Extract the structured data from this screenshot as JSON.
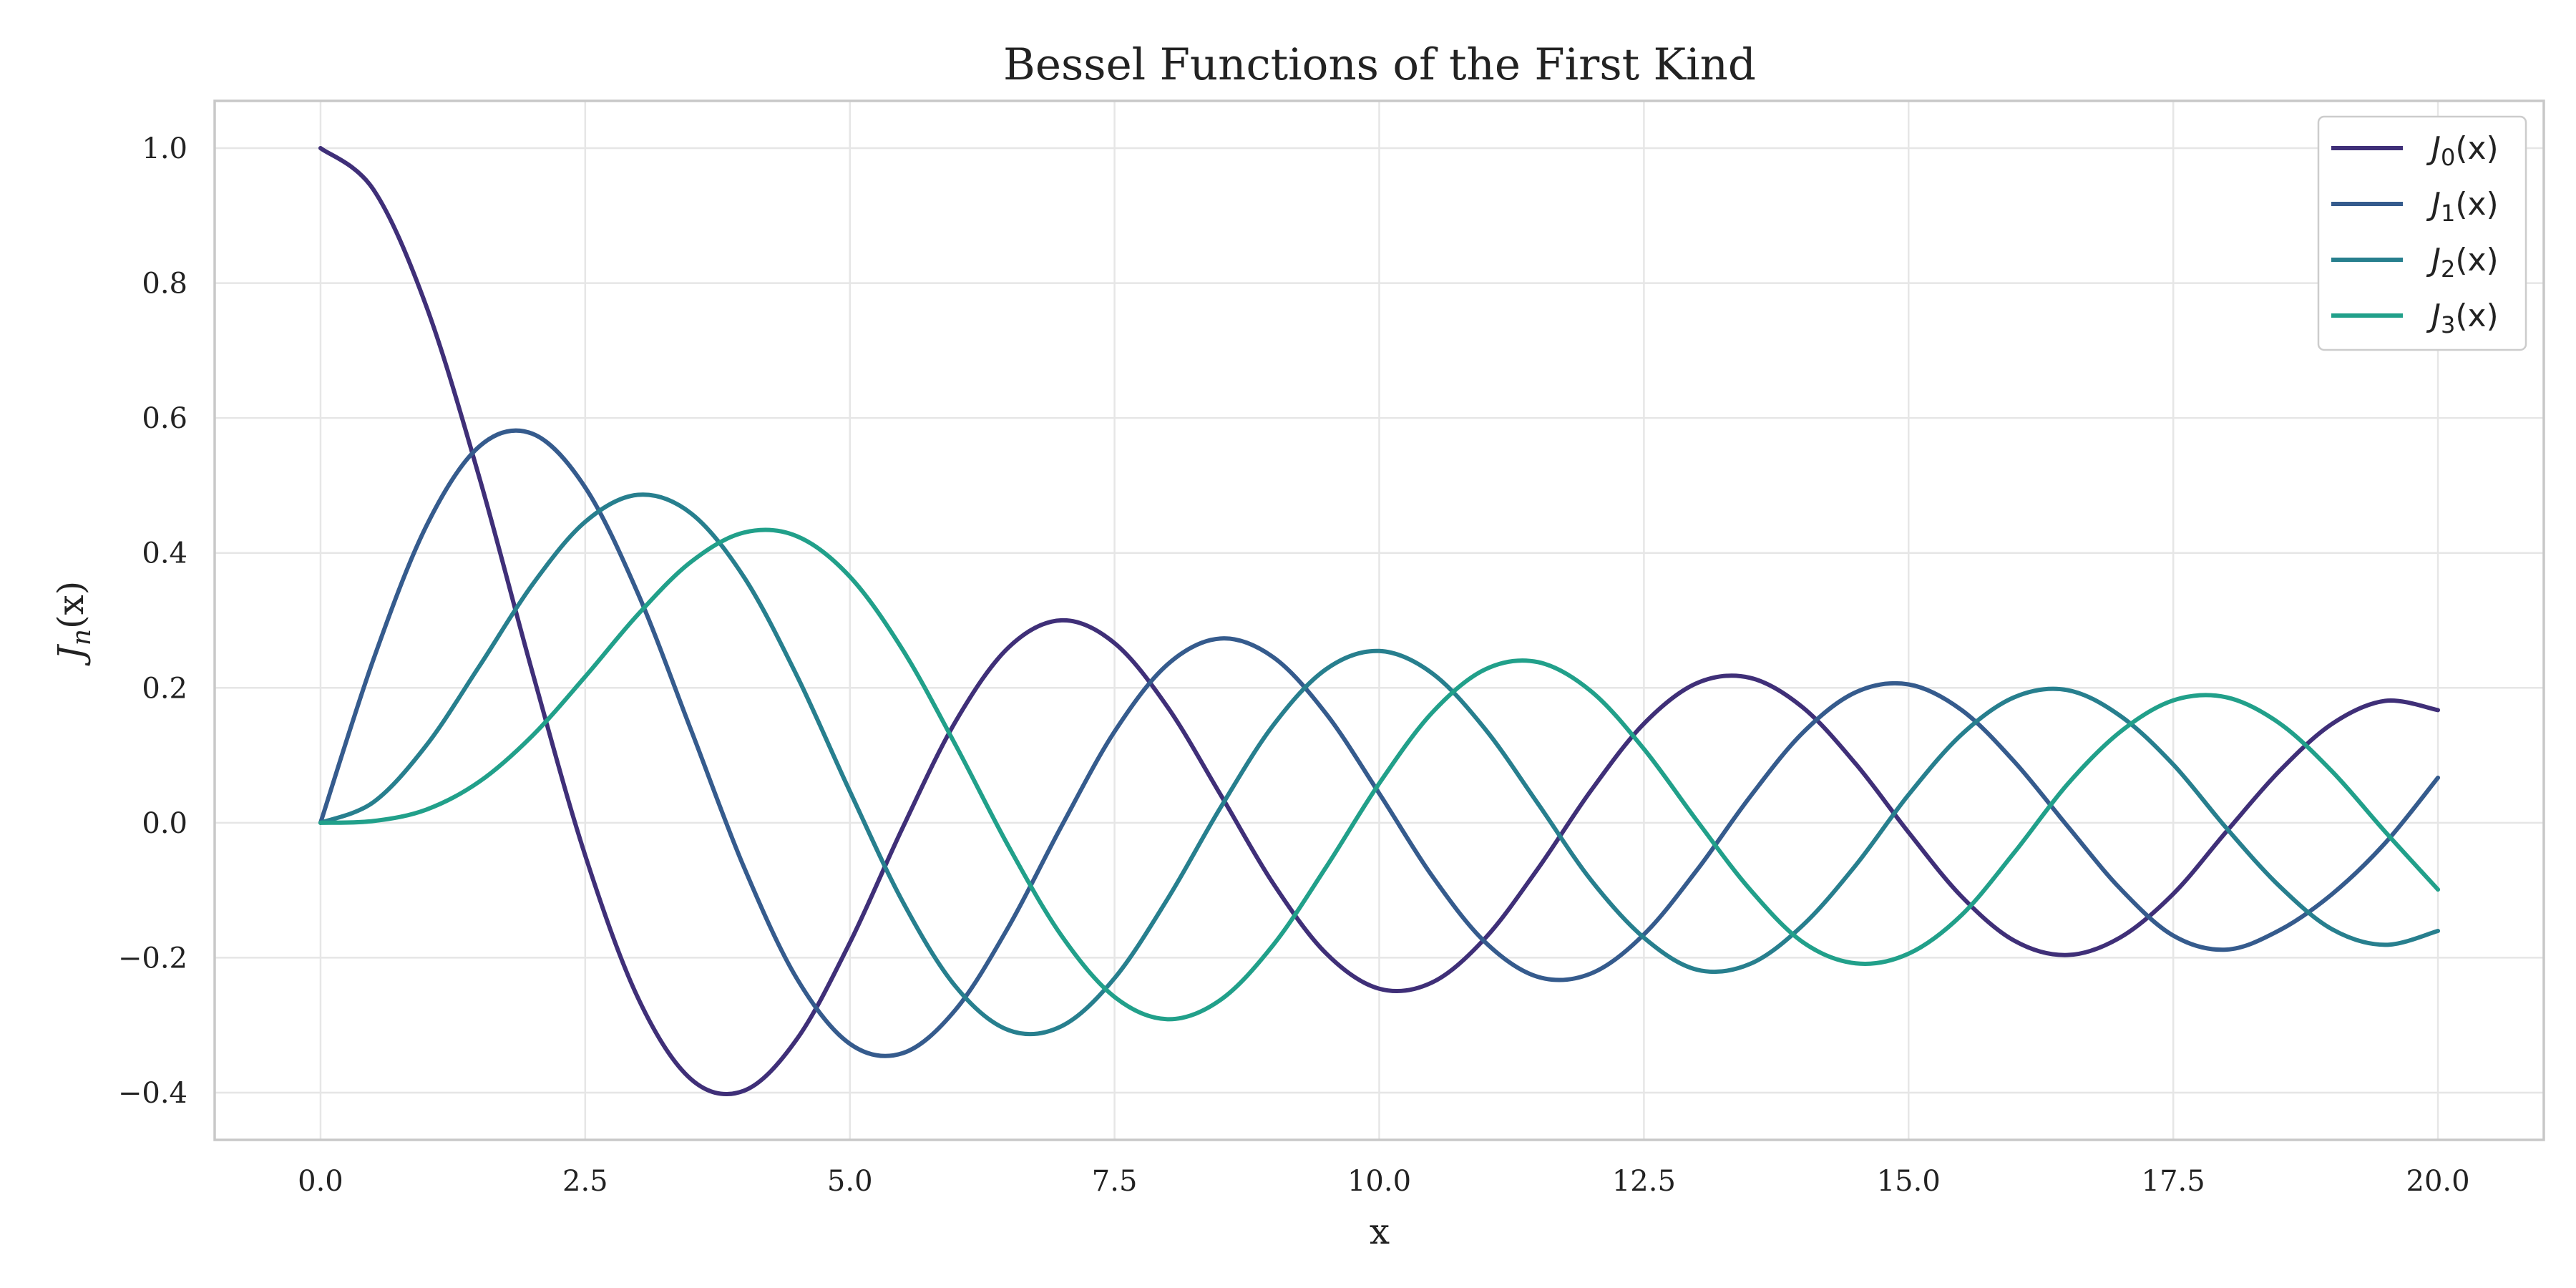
{
  "chart_data": {
    "type": "line",
    "title": "Bessel Functions of the First Kind",
    "xlabel": "x",
    "ylabel": "J_n(x)",
    "ylabel_parts": {
      "base": "J",
      "sub": "n",
      "arg": "(x)"
    },
    "xlim": [
      -1.0,
      21.0
    ],
    "ylim": [
      -0.47,
      1.07
    ],
    "x_ticks": [
      0.0,
      2.5,
      5.0,
      7.5,
      10.0,
      12.5,
      15.0,
      17.5,
      20.0
    ],
    "x_tick_labels": [
      "0.0",
      "2.5",
      "5.0",
      "7.5",
      "10.0",
      "12.5",
      "15.0",
      "17.5",
      "20.0"
    ],
    "y_ticks": [
      -0.4,
      -0.2,
      0.0,
      0.2,
      0.4,
      0.6,
      0.8,
      1.0
    ],
    "y_tick_labels": [
      "−0.4",
      "−0.2",
      "0.0",
      "0.2",
      "0.4",
      "0.6",
      "0.8",
      "1.0"
    ],
    "grid": true,
    "legend_position": "top-right",
    "x": [
      0,
      0.5,
      1,
      1.5,
      2,
      2.5,
      3,
      3.5,
      4,
      4.5,
      5,
      5.5,
      6,
      6.5,
      7,
      7.5,
      8,
      8.5,
      9,
      9.5,
      10,
      10.5,
      11,
      11.5,
      12,
      12.5,
      13,
      13.5,
      14,
      14.5,
      15,
      15.5,
      16,
      16.5,
      17,
      17.5,
      18,
      18.5,
      19,
      19.5,
      20
    ],
    "series": [
      {
        "name": "J_0(x)",
        "label_parts": {
          "base": "J",
          "sub": "0",
          "arg": "(x)"
        },
        "color": "#3f2f78",
        "values": [
          1.0,
          0.9385,
          0.7652,
          0.5118,
          0.2239,
          -0.0484,
          -0.2601,
          -0.3801,
          -0.3971,
          -0.3205,
          -0.1776,
          -0.0068,
          0.1506,
          0.2601,
          0.3001,
          0.2663,
          0.1717,
          0.0419,
          -0.0903,
          -0.1939,
          -0.2459,
          -0.2366,
          -0.1712,
          -0.0677,
          0.0477,
          0.1469,
          0.2069,
          0.215,
          0.1711,
          0.0875,
          -0.0142,
          -0.1092,
          -0.1749,
          -0.196,
          -0.1699,
          -0.1054,
          -0.0134,
          0.0762,
          0.1466,
          0.1807,
          0.167
        ]
      },
      {
        "name": "J_1(x)",
        "label_parts": {
          "base": "J",
          "sub": "1",
          "arg": "(x)"
        },
        "color": "#355b8d",
        "values": [
          0.0,
          0.2423,
          0.4401,
          0.5579,
          0.5767,
          0.4971,
          0.3391,
          0.1374,
          -0.066,
          -0.2311,
          -0.3276,
          -0.3414,
          -0.2767,
          -0.1538,
          -0.0047,
          0.1352,
          0.2346,
          0.2731,
          0.2453,
          0.1613,
          0.0435,
          -0.0789,
          -0.1768,
          -0.2284,
          -0.2234,
          -0.1655,
          -0.0703,
          0.038,
          0.1334,
          0.1934,
          0.2051,
          0.1672,
          0.0904,
          -0.0047,
          -0.0977,
          -0.1672,
          -0.188,
          -0.1596,
          -0.1057,
          -0.0303,
          0.0668
        ]
      },
      {
        "name": "J_2(x)",
        "label_parts": {
          "base": "J",
          "sub": "2",
          "arg": "(x)"
        },
        "color": "#277f8e",
        "values": [
          0.0,
          0.0306,
          0.1149,
          0.2321,
          0.3528,
          0.4461,
          0.4861,
          0.4586,
          0.3641,
          0.2178,
          0.0466,
          -0.1173,
          -0.2429,
          -0.3074,
          -0.3014,
          -0.2303,
          -0.113,
          0.0223,
          0.1448,
          0.2279,
          0.2546,
          0.2216,
          0.139,
          0.0282,
          -0.0849,
          -0.1703,
          -0.2177,
          -0.2094,
          -0.152,
          -0.0631,
          0.0416,
          0.1308,
          0.1862,
          0.1967,
          0.1584,
          0.0863,
          -0.0075,
          -0.0934,
          -0.1578,
          -0.1809,
          -0.1603
        ]
      },
      {
        "name": "J_3(x)",
        "label_parts": {
          "base": "J",
          "sub": "3",
          "arg": "(x)"
        },
        "color": "#21a08a",
        "values": [
          0.0,
          0.0026,
          0.0196,
          0.061,
          0.1289,
          0.2166,
          0.3091,
          0.3868,
          0.4302,
          0.4247,
          0.3648,
          0.2561,
          0.1148,
          -0.0353,
          -0.1676,
          -0.2581,
          -0.2911,
          -0.2626,
          -0.1809,
          -0.0653,
          0.0584,
          0.1633,
          0.2273,
          0.2381,
          0.1951,
          0.1094,
          0.0033,
          -0.0984,
          -0.1768,
          -0.2083,
          -0.194,
          -0.1369,
          -0.0438,
          0.057,
          0.1349,
          0.1814,
          0.1861,
          0.1479,
          0.0762,
          -0.013,
          -0.0989
        ]
      }
    ]
  }
}
